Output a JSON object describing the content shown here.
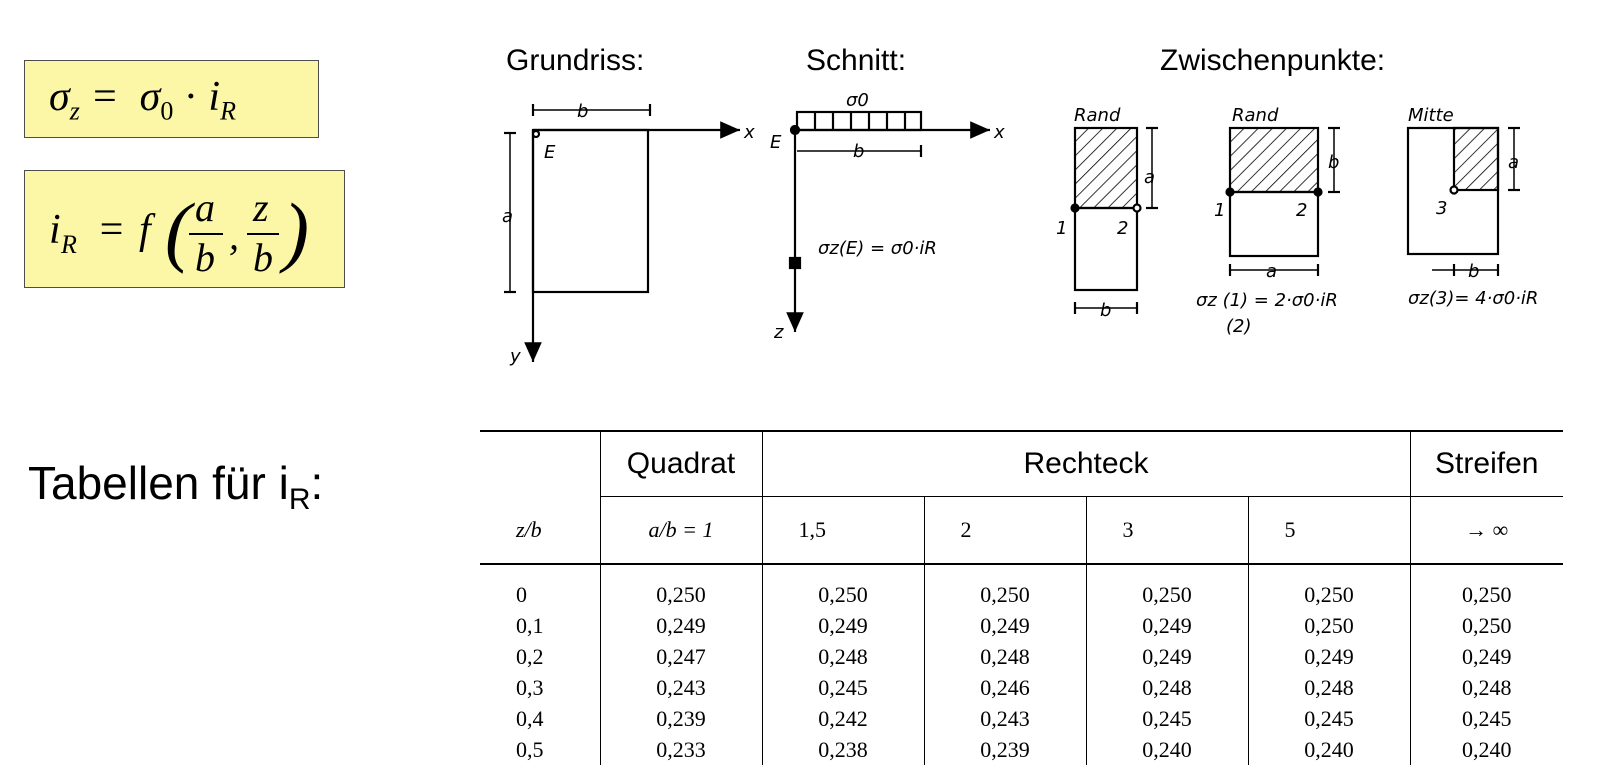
{
  "formulas": {
    "sigma": "σz =  σ0 · iR",
    "influence": "iR = f(a/b, z/b)"
  },
  "labels": {
    "grundriss": "Grundriss:",
    "schnitt": "Schnitt:",
    "zwischenpunkte": "Zwischenpunkte:",
    "tabellen": "Tabellen für i",
    "tabellen_sub": "R",
    "tabellen_colon": ":"
  },
  "diagram": {
    "b": "b",
    "a": "a",
    "x": "x",
    "y": "y",
    "z": "z",
    "E": "E",
    "sigma0": "σ0",
    "sigmaE": "σz(E) = σ0·iR",
    "rand": "Rand",
    "mitte": "Mitte",
    "p1": "1",
    "p2": "2",
    "p3": "3",
    "sigma12": "σz (1) = 2·σ0·iR",
    "sigma12b": "(2)",
    "sigma3": "σz(3)= 4·σ0·iR"
  },
  "table": {
    "group_headers": [
      "Quadrat",
      "Rechteck",
      "Streifen"
    ],
    "col_headers": [
      "z/b",
      "a/b = 1",
      "1,5",
      "2",
      "3",
      "5",
      "→ ∞"
    ],
    "rows": [
      [
        "0",
        "0,250",
        "0,250",
        "0,250",
        "0,250",
        "0,250",
        "0,250"
      ],
      [
        "0,1",
        "0,249",
        "0,249",
        "0,249",
        "0,249",
        "0,250",
        "0,250"
      ],
      [
        "0,2",
        "0,247",
        "0,248",
        "0,248",
        "0,249",
        "0,249",
        "0,249"
      ],
      [
        "0,3",
        "0,243",
        "0,245",
        "0,246",
        "0,248",
        "0,248",
        "0,248"
      ],
      [
        "0,4",
        "0,239",
        "0,242",
        "0,243",
        "0,245",
        "0,245",
        "0,245"
      ],
      [
        "0,5",
        "0,233",
        "0,238",
        "0,239",
        "0,240",
        "0,240",
        "0,240"
      ]
    ]
  }
}
